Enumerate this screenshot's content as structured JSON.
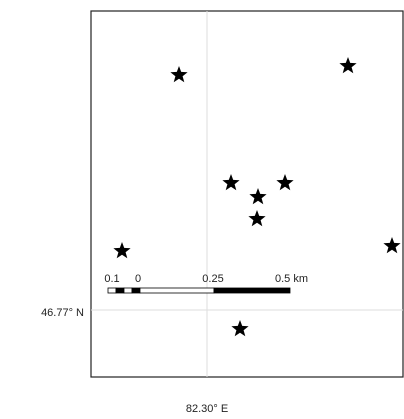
{
  "map": {
    "graticule": {
      "latitude_label": "46.77",
      "latitude_suffix": "° N",
      "longitude_label": "82.30",
      "longitude_suffix": "° E"
    },
    "scale_bar": {
      "labels": [
        "0.1",
        "0",
        "0.25",
        "0.5 km"
      ]
    },
    "markers": {
      "symbol": "star",
      "count": 9,
      "color": "#000000"
    },
    "colors": {
      "frame": "#222222",
      "graticule": "#dddddd",
      "background": "#ffffff"
    }
  }
}
